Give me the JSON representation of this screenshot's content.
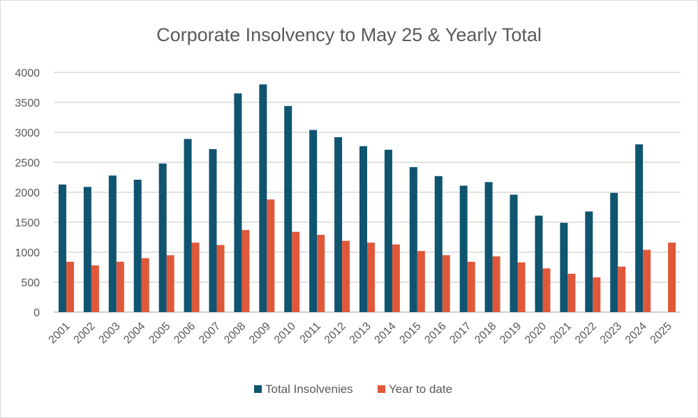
{
  "chart_data": {
    "type": "bar",
    "title": "Corporate Insolvency to May 25 & Yearly Total",
    "xlabel": "",
    "ylabel": "",
    "ylim": [
      0,
      4000
    ],
    "yticks": [
      0,
      500,
      1000,
      1500,
      2000,
      2500,
      3000,
      3500,
      4000
    ],
    "grid": true,
    "legend_position": "bottom",
    "categories": [
      "2001",
      "2002",
      "2003",
      "2004",
      "2005",
      "2006",
      "2007",
      "2008",
      "2009",
      "2010",
      "2011",
      "2012",
      "2013",
      "2014",
      "2015",
      "2016",
      "2017",
      "2018",
      "2019",
      "2020",
      "2021",
      "2022",
      "2023",
      "2024",
      "2025"
    ],
    "series": [
      {
        "name": "Total Insolvenies",
        "color": "#0f5470",
        "values": [
          2130,
          2090,
          2280,
          2210,
          2480,
          2890,
          2720,
          3650,
          3800,
          3440,
          3040,
          2920,
          2770,
          2710,
          2420,
          2270,
          2110,
          2170,
          1960,
          1610,
          1490,
          1680,
          1990,
          2800,
          null
        ]
      },
      {
        "name": "Year to date",
        "color": "#e0583a",
        "values": [
          840,
          780,
          840,
          900,
          950,
          1160,
          1120,
          1370,
          1880,
          1340,
          1290,
          1190,
          1160,
          1130,
          1020,
          950,
          840,
          930,
          830,
          730,
          640,
          580,
          760,
          1040,
          1160
        ]
      }
    ]
  }
}
